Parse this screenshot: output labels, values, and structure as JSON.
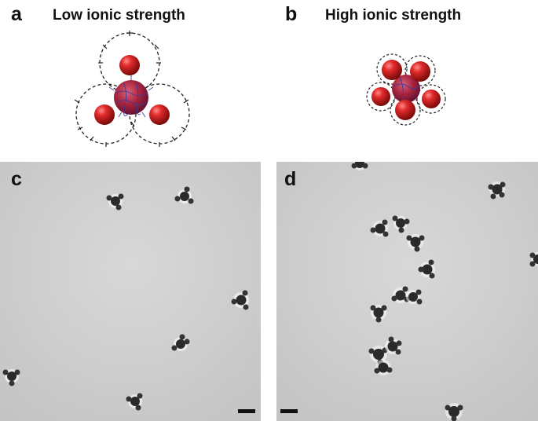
{
  "panels": {
    "a": {
      "letter": "a",
      "title": "Low ionic strength"
    },
    "b": {
      "letter": "b",
      "title": "High ionic strength"
    },
    "c": {
      "letter": "c"
    },
    "d": {
      "letter": "d"
    }
  },
  "colors": {
    "satellite": "#cc1f24",
    "core": "#b02a44",
    "dashed_shell": "#222222",
    "micrograph_bg": "#cfcfcf",
    "cluster_dark": "#2a2a2a",
    "scalebar": "#111111"
  }
}
